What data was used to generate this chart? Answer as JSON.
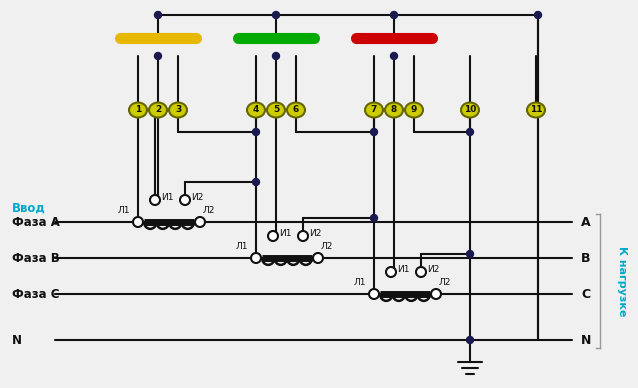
{
  "bg_color": "#f0f0f0",
  "line_color": "#111111",
  "dot_color": "#1a1a50",
  "busbar_colors": [
    "#e6b800",
    "#00aa00",
    "#cc0000"
  ],
  "terminal_numbers": [
    "1",
    "2",
    "3",
    "4",
    "5",
    "6",
    "7",
    "8",
    "9",
    "10",
    "11"
  ],
  "text_vvod": "Ввод",
  "text_phases_left": [
    "Фаза A",
    "Фаза B",
    "Фаза C",
    "N"
  ],
  "text_nagruzka": "К нагрузке",
  "text_right": [
    "A",
    "B",
    "C",
    "N"
  ],
  "cyan_color": "#00aacc",
  "white_color": "#ffffff",
  "term_color": "#cccc00",
  "term_edge": "#666600"
}
